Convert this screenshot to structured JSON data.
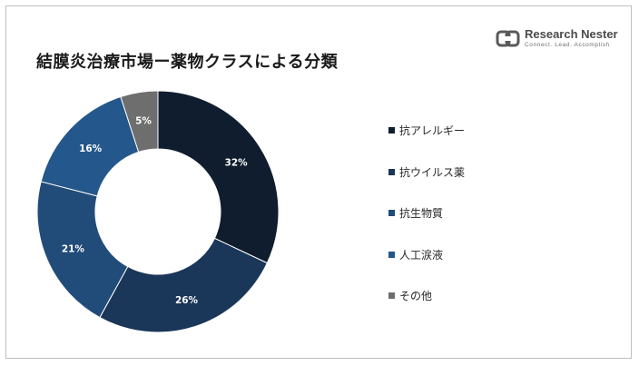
{
  "title": "結膜炎治療市場ー薬物クラスによる分類",
  "logo": {
    "name": "Research Nester",
    "tagline": "Connect. Lead. Accomplish"
  },
  "chart_data": {
    "type": "pie",
    "donut": true,
    "legend_position": "right",
    "categories": [
      "抗アレルギー",
      "抗ウイルス薬",
      "抗生物質",
      "人工涙液",
      "その他"
    ],
    "values": [
      32,
      26,
      21,
      16,
      5
    ],
    "data_labels": [
      "32%",
      "26%",
      "21%",
      "16%",
      "5%"
    ],
    "colors": [
      "#0f1d2e",
      "#1a3658",
      "#214b79",
      "#24578b",
      "#6e6e6e"
    ],
    "label_color": "#ffffff",
    "start_angle_deg": 0,
    "direction": "clockwise"
  }
}
